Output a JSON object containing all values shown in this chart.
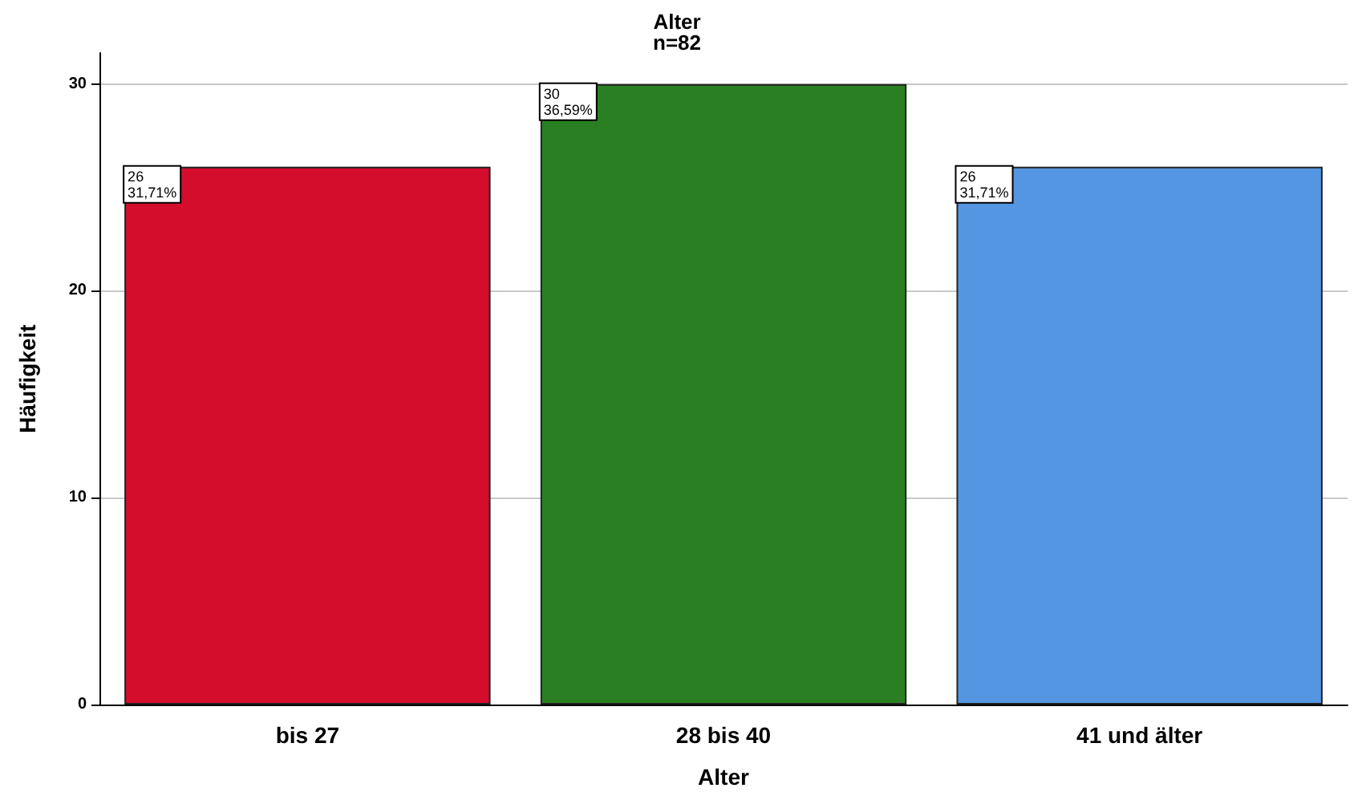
{
  "chart_data": {
    "type": "bar",
    "title": "Alter",
    "subtitle": "n=82",
    "xlabel": "Alter",
    "ylabel": "Häufigkeit",
    "categories": [
      "bis 27",
      "28 bis 40",
      "41 und älter"
    ],
    "values": [
      26,
      30,
      26
    ],
    "colors": [
      "#d50d2d",
      "#2a7f23",
      "#5596e2"
    ],
    "value_labels": [
      "26\n31,71%",
      "30\n36,59%",
      "26\n31,71%"
    ],
    "ylim": [
      0,
      31.5
    ],
    "yticks": [
      0,
      10,
      20,
      30
    ],
    "grid": "y"
  }
}
